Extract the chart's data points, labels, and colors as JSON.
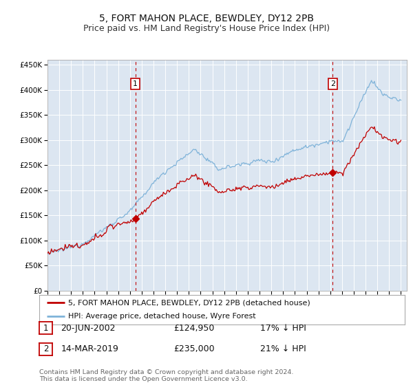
{
  "title": "5, FORT MAHON PLACE, BEWDLEY, DY12 2PB",
  "subtitle": "Price paid vs. HM Land Registry's House Price Index (HPI)",
  "title_fontsize": 10,
  "subtitle_fontsize": 9,
  "ylim": [
    0,
    460000
  ],
  "yticks": [
    0,
    50000,
    100000,
    150000,
    200000,
    250000,
    300000,
    350000,
    400000,
    450000
  ],
  "ytick_labels": [
    "£0",
    "£50K",
    "£100K",
    "£150K",
    "£200K",
    "£250K",
    "£300K",
    "£350K",
    "£400K",
    "£450K"
  ],
  "hpi_color": "#7fb3d9",
  "price_color": "#c00000",
  "sale1_year": 2002.46,
  "sale2_year": 2019.21,
  "sale1_date": "20-JUN-2002",
  "sale1_price": "£124,950",
  "sale1_hpi": "17% ↓ HPI",
  "sale2_date": "14-MAR-2019",
  "sale2_price": "£235,000",
  "sale2_hpi": "21% ↓ HPI",
  "legend_label1": "5, FORT MAHON PLACE, BEWDLEY, DY12 2PB (detached house)",
  "legend_label2": "HPI: Average price, detached house, Wyre Forest",
  "footnote1": "Contains HM Land Registry data © Crown copyright and database right 2024.",
  "footnote2": "This data is licensed under the Open Government Licence v3.0.",
  "bg_color": "#dce6f1",
  "grid_color": "#ffffff"
}
